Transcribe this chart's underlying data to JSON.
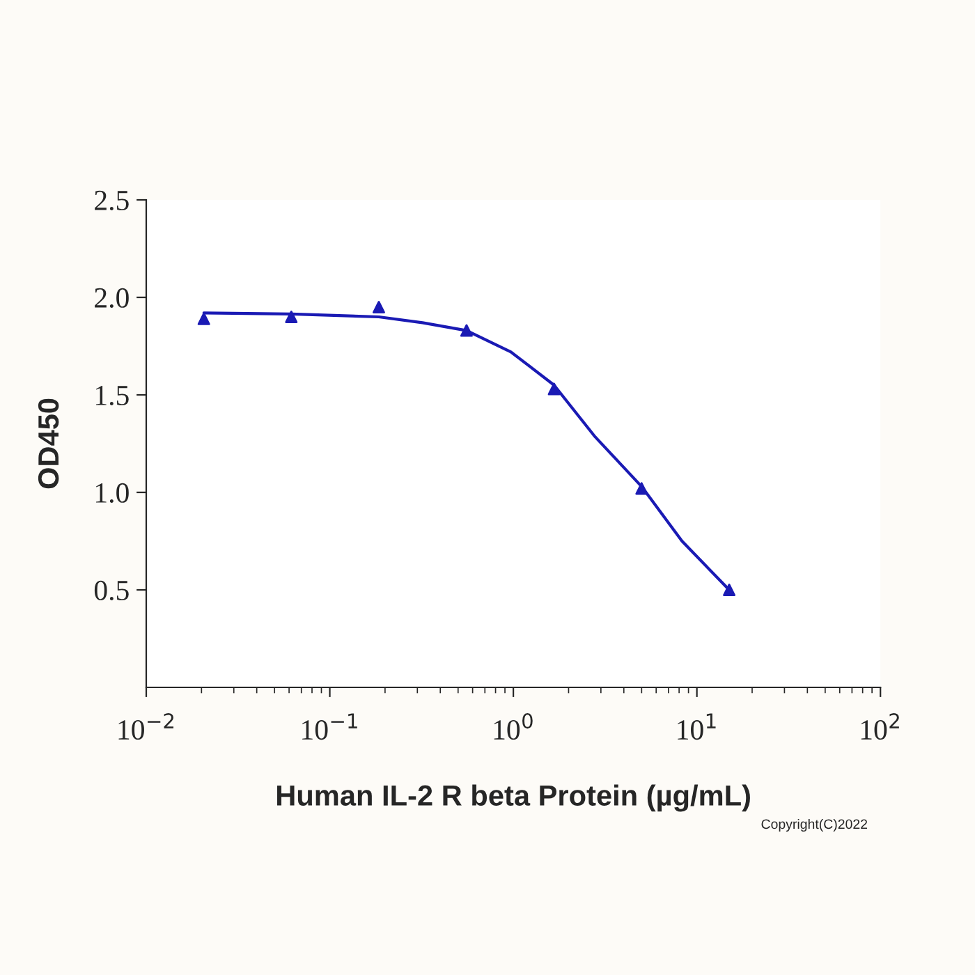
{
  "chart_data": {
    "type": "scatter",
    "xlabel": "Human IL-2 R beta Protein (µg/mL)",
    "ylabel": "OD450",
    "log": "x",
    "xlim": [
      0.01,
      100
    ],
    "xticks": [
      {
        "value": 0.01,
        "label": "10$^{−2}$"
      },
      {
        "value": 0.1,
        "label": "10$^{−1}$"
      },
      {
        "value": 1,
        "label": "10$^{0}$"
      },
      {
        "value": 10,
        "label": "10$^{1}$"
      },
      {
        "value": 100,
        "label": "10$^{2}$"
      }
    ],
    "ylim": [
      0,
      2.5
    ],
    "yticks": [
      {
        "value": 0.5,
        "label": "0.5"
      },
      {
        "value": 1,
        "label": "1.0"
      },
      {
        "value": 1.5,
        "label": "1.5"
      },
      {
        "value": 2,
        "label": "2.0"
      },
      {
        "value": 2.5,
        "label": "2.5"
      }
    ],
    "grid": false,
    "annotations": [
      "Copyright(C)2022"
    ],
    "series": [
      {
        "color": "#1a1ab4",
        "marker": "triangle",
        "x": [
          0.0206,
          0.0617,
          0.185,
          0.556,
          1.667,
          5,
          15
        ],
        "values": [
          1.89,
          1.9,
          1.95,
          1.83,
          1.53,
          1.02,
          0.5
        ]
      },
      {
        "type": "line",
        "color": "#1a1ab4",
        "marker": "none",
        "x": [
          0.0206,
          0.0617,
          0.185,
          0.32,
          0.556,
          0.97,
          1.667,
          2.76,
          5,
          8.3,
          15
        ],
        "values": [
          1.92,
          1.915,
          1.9,
          1.87,
          1.83,
          1.72,
          1.55,
          1.29,
          1.03,
          0.75,
          0.5
        ]
      }
    ]
  }
}
